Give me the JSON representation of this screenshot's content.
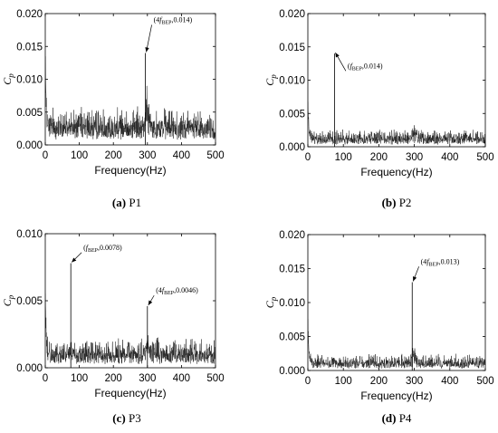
{
  "chart_data": [
    {
      "type": "line",
      "caption_letter": "(a)",
      "caption_text": " P1",
      "xlabel": "Frequency(Hz)",
      "ylabel": "C",
      "ylabel_sub": "p",
      "xlim": [
        0,
        500
      ],
      "ylim": [
        0,
        0.02
      ],
      "xticks": [
        "0",
        "100",
        "200",
        "300",
        "400",
        "500"
      ],
      "yticks": [
        "0.000",
        "0.005",
        "0.010",
        "0.015",
        "0.020"
      ],
      "noise": {
        "base": 0.0032,
        "amp": 0.0028,
        "low_freq_peak": 0.0145,
        "bump_center": 300,
        "bump_height": 0.004
      },
      "peaks": [
        {
          "x": 294,
          "y": 0.014
        }
      ],
      "annotations": [
        {
          "pre": "(4",
          "f": "f",
          "sub": "BEP",
          "post": ",0.014)",
          "x": 294,
          "y": 0.014,
          "label_x": 318,
          "label_y": 0.0187
        }
      ]
    },
    {
      "type": "line",
      "caption_letter": "(b)",
      "caption_text": " P2",
      "xlabel": "Frequency(Hz)",
      "ylabel": "C",
      "ylabel_sub": "p",
      "xlim": [
        0,
        500
      ],
      "ylim": [
        0,
        0.02
      ],
      "xticks": [
        "0",
        "100",
        "200",
        "300",
        "400",
        "500"
      ],
      "yticks": [
        "0.000",
        "0.005",
        "0.010",
        "0.015",
        "0.020"
      ],
      "noise": {
        "base": 0.0013,
        "amp": 0.0014,
        "low_freq_peak": 0.007,
        "bump_center": 300,
        "bump_height": 0.0015
      },
      "peaks": [
        {
          "x": 75,
          "y": 0.014
        }
      ],
      "annotations": [
        {
          "pre": "(",
          "f": "f",
          "sub": "BEP",
          "post": ",0.014)",
          "x": 75,
          "y": 0.014,
          "label_x": 112,
          "label_y": 0.0118
        }
      ]
    },
    {
      "type": "line",
      "caption_letter": "(c)",
      "caption_text": " P3",
      "xlabel": "Frequency(Hz)",
      "ylabel": "C",
      "ylabel_sub": "p",
      "xlim": [
        0,
        500
      ],
      "ylim": [
        0,
        0.01
      ],
      "xticks": [
        "0",
        "100",
        "200",
        "300",
        "400",
        "500"
      ],
      "yticks": [
        "0.000",
        "0.005",
        "0.010"
      ],
      "noise": {
        "base": 0.0011,
        "amp": 0.0012,
        "low_freq_peak": 0.0057,
        "bump_center": 300,
        "bump_height": 0.0015
      },
      "peaks": [
        {
          "x": 75,
          "y": 0.0078
        },
        {
          "x": 300,
          "y": 0.0046
        }
      ],
      "annotations": [
        {
          "pre": "(",
          "f": "f",
          "sub": "BEP",
          "post": ",0.0078)",
          "x": 75,
          "y": 0.0078,
          "label_x": 112,
          "label_y": 0.0088
        },
        {
          "pre": "(4",
          "f": "f",
          "sub": "BEP",
          "post": ",0.0046)",
          "x": 300,
          "y": 0.0046,
          "label_x": 325,
          "label_y": 0.0056
        }
      ]
    },
    {
      "type": "line",
      "caption_letter": "(d)",
      "caption_text": " P4",
      "xlabel": "Frequency(Hz)",
      "ylabel": "C",
      "ylabel_sub": "p",
      "xlim": [
        0,
        500
      ],
      "ylim": [
        0,
        0.02
      ],
      "xticks": [
        "0",
        "100",
        "200",
        "300",
        "400",
        "500"
      ],
      "yticks": [
        "0.000",
        "0.005",
        "0.010",
        "0.015",
        "0.020"
      ],
      "noise": {
        "base": 0.0012,
        "amp": 0.0013,
        "low_freq_peak": 0.0075,
        "bump_center": 300,
        "bump_height": 0.0025
      },
      "peaks": [
        {
          "x": 294,
          "y": 0.013
        }
      ],
      "annotations": [
        {
          "pre": "(4",
          "f": "f",
          "sub": "BEP",
          "post": ",0.013)",
          "x": 294,
          "y": 0.013,
          "label_x": 318,
          "label_y": 0.0157
        }
      ]
    }
  ]
}
